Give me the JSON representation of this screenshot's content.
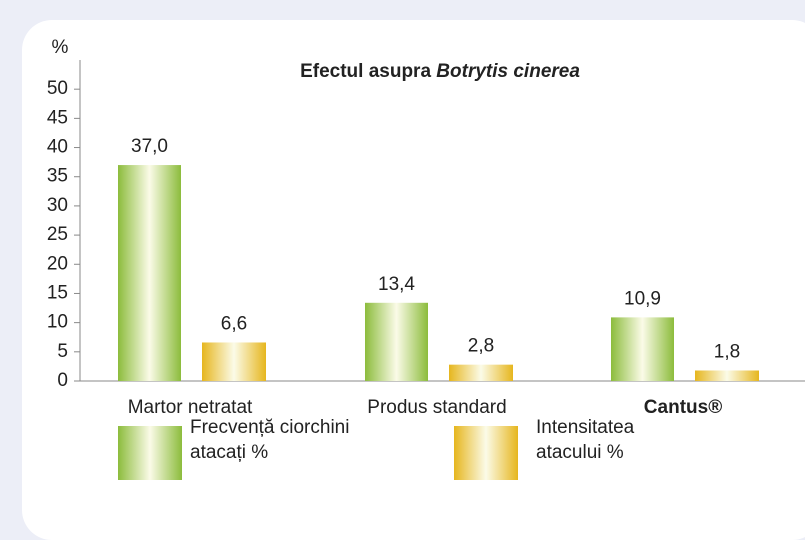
{
  "chart_data": {
    "type": "bar",
    "title": [
      "Efectul asupra ",
      "Botrytis cinerea"
    ],
    "ylabel": "%",
    "categories": [
      "Martor netratat",
      "Produs standard",
      "Cantus®"
    ],
    "series": [
      {
        "name": "Frecvență ciorchini atacați %",
        "color": "#8cbc3c",
        "values": [
          37.0,
          13.4,
          10.9
        ],
        "value_labels": [
          "37,0",
          "13,4",
          "10,9"
        ]
      },
      {
        "name": "Intensitatea atacului %",
        "color": "#e6b61e",
        "values": [
          6.6,
          2.8,
          1.8
        ],
        "value_labels": [
          "6,6",
          "2,8",
          "1,8"
        ]
      }
    ],
    "ylim": [
      0,
      55
    ],
    "yticks": [
      0,
      5,
      10,
      15,
      20,
      25,
      30,
      35,
      40,
      45,
      50
    ]
  }
}
